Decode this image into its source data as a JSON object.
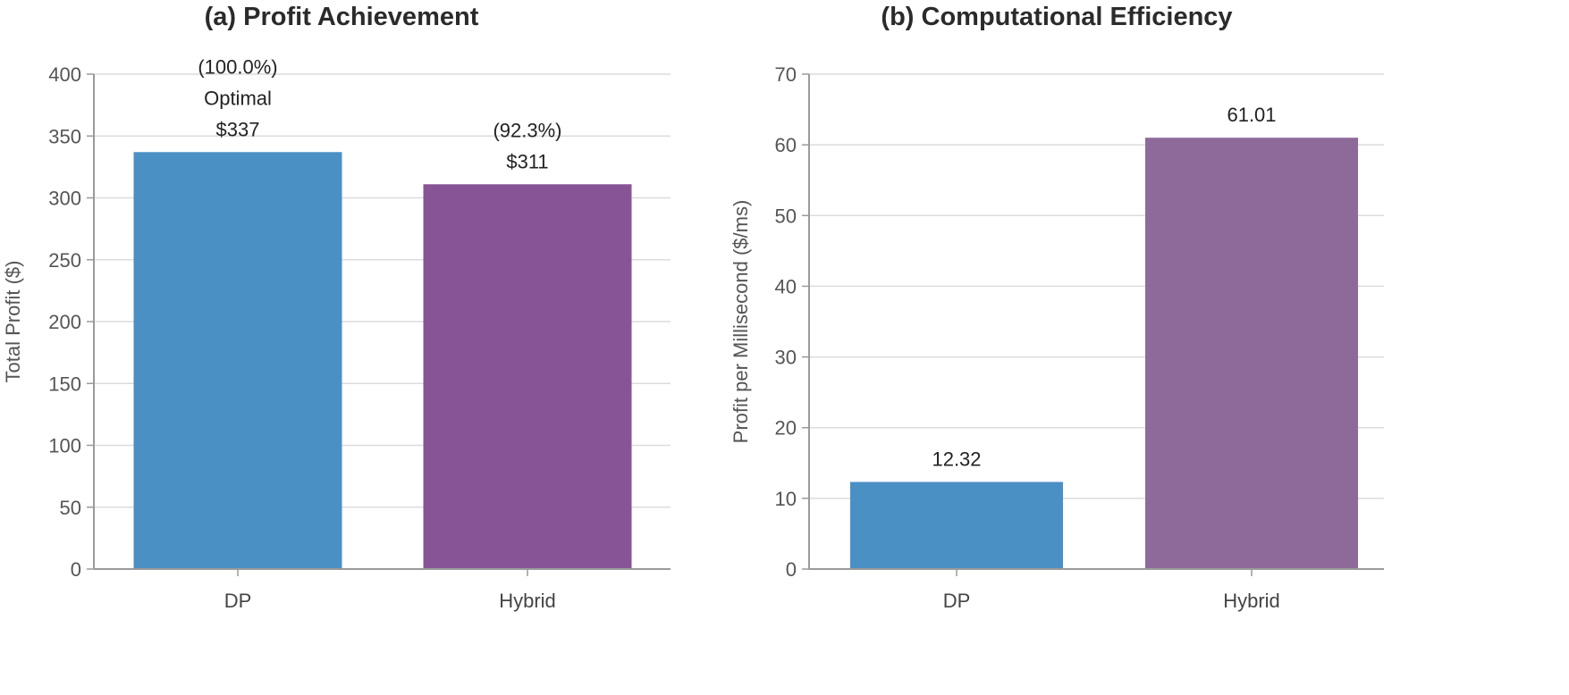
{
  "chart_data": [
    {
      "type": "bar",
      "title": "(a) Profit Achievement",
      "ylabel": "Total Profit ($)",
      "xlabel": "",
      "categories": [
        "DP",
        "Hybrid"
      ],
      "values": [
        337,
        311
      ],
      "data_labels": [
        [
          "(100.0%)",
          "Optimal",
          "$337"
        ],
        [
          "(92.3%)",
          "$311"
        ]
      ],
      "colors": [
        "#4a90c4",
        "#875596"
      ],
      "ylim": [
        0,
        400
      ],
      "yticks": [
        "0",
        "50",
        "100",
        "150",
        "200",
        "250",
        "300",
        "350",
        "400"
      ],
      "grid": true
    },
    {
      "type": "bar",
      "title": "(b) Computational Efficiency",
      "ylabel": "Profit per Millisecond ($/ms)",
      "xlabel": "",
      "categories": [
        "DP",
        "Hybrid"
      ],
      "values": [
        12.32,
        61.01
      ],
      "data_labels": [
        [
          "12.32"
        ],
        [
          "61.01"
        ]
      ],
      "colors": [
        "#4a90c4",
        "#8e6a9a"
      ],
      "ylim": [
        0,
        70
      ],
      "yticks": [
        "0",
        "10",
        "20",
        "30",
        "40",
        "50",
        "60",
        "70"
      ],
      "grid": true
    }
  ]
}
